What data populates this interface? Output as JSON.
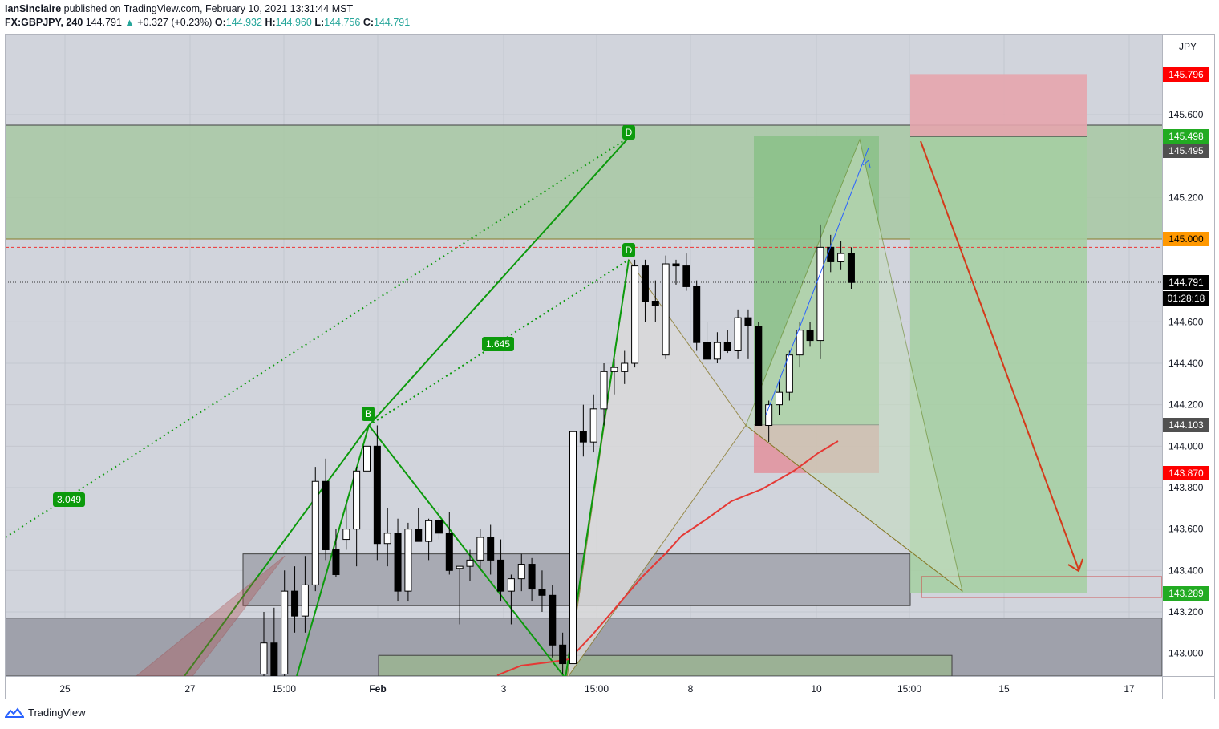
{
  "header": {
    "author": "IanSinclaire",
    "published_text": "published on TradingView.com, February 10, 2021 13:31:44 MST",
    "symbol": "FX:GBPJPY, 240",
    "last": "144.791",
    "change_arrow": "▲",
    "change": "+0.327 (+0.23%)",
    "o_label": "O:",
    "o_value": "144.932",
    "h_label": "H:",
    "h_value": "144.960",
    "l_label": "L:",
    "l_value": "144.756",
    "c_label": "C:",
    "c_value": "144.791"
  },
  "footer": {
    "brand": "TradingView",
    "logo_icon": "tradingview-logo-icon"
  },
  "chart_data": {
    "type": "candlestick",
    "currency_label": "JPY",
    "colors": {
      "background": "#d1d4dc",
      "up_candle": "#ffffff",
      "down_candle": "#000000",
      "pattern_line": "#0c9a0c",
      "target_box": "#8fbd8f",
      "stop_box": "#e08d9b",
      "price_red": "#ff0000",
      "price_orange": "#ff9800",
      "price_green": "#22ab22",
      "price_black": "#000000",
      "price_gray": "#505050"
    },
    "y_axis": {
      "min": 142.88,
      "max": 146.0,
      "ticks": [
        "145.600",
        "145.200",
        "144.600",
        "144.400",
        "144.200",
        "144.000",
        "143.800",
        "143.600",
        "143.400",
        "143.200",
        "143.000"
      ]
    },
    "x_axis": {
      "ticks": [
        "25",
        "27",
        "15:00",
        "Feb",
        "3",
        "15:00",
        "8",
        "10",
        "15:00",
        "15",
        "17"
      ]
    },
    "price_labels": [
      {
        "value": "145.796",
        "color": "red"
      },
      {
        "value": "145.498",
        "color": "green"
      },
      {
        "value": "145.495",
        "color": "gray"
      },
      {
        "value": "145.000",
        "color": "orange"
      },
      {
        "value": "144.791",
        "color": "black"
      },
      {
        "value": "01:28:18",
        "color": "black"
      },
      {
        "value": "144.103",
        "color": "gray"
      },
      {
        "value": "143.870",
        "color": "red"
      },
      {
        "value": "143.289",
        "color": "green"
      }
    ],
    "pattern_labels": [
      {
        "text": "D",
        "price": 145.55
      },
      {
        "text": "D",
        "price": 144.98
      },
      {
        "text": "B",
        "price": 144.15
      },
      {
        "text": "1.645",
        "price": 144.5
      },
      {
        "text": "3.049",
        "price": 143.73
      }
    ],
    "candles": [
      {
        "o": 142.9,
        "h": 143.2,
        "l": 142.85,
        "c": 143.05
      },
      {
        "o": 143.05,
        "h": 143.22,
        "l": 142.85,
        "c": 142.86
      },
      {
        "o": 142.9,
        "h": 143.4,
        "l": 142.85,
        "c": 143.3
      },
      {
        "o": 143.3,
        "h": 143.42,
        "l": 143.1,
        "c": 143.18
      },
      {
        "o": 143.18,
        "h": 143.47,
        "l": 143.1,
        "c": 143.33
      },
      {
        "o": 143.33,
        "h": 143.9,
        "l": 143.3,
        "c": 143.83
      },
      {
        "o": 143.83,
        "h": 143.94,
        "l": 143.45,
        "c": 143.5
      },
      {
        "o": 143.5,
        "h": 143.6,
        "l": 143.37,
        "c": 143.38
      },
      {
        "o": 143.55,
        "h": 143.72,
        "l": 143.5,
        "c": 143.6
      },
      {
        "o": 143.6,
        "h": 143.9,
        "l": 143.42,
        "c": 143.88
      },
      {
        "o": 143.88,
        "h": 144.1,
        "l": 143.84,
        "c": 144.0
      },
      {
        "o": 144.0,
        "h": 144.1,
        "l": 143.45,
        "c": 143.53
      },
      {
        "o": 143.53,
        "h": 143.7,
        "l": 143.42,
        "c": 143.58
      },
      {
        "o": 143.58,
        "h": 143.65,
        "l": 143.25,
        "c": 143.3
      },
      {
        "o": 143.3,
        "h": 143.63,
        "l": 143.25,
        "c": 143.6
      },
      {
        "o": 143.6,
        "h": 143.7,
        "l": 143.55,
        "c": 143.54
      },
      {
        "o": 143.54,
        "h": 143.65,
        "l": 143.45,
        "c": 143.64
      },
      {
        "o": 143.64,
        "h": 143.7,
        "l": 143.55,
        "c": 143.58
      },
      {
        "o": 143.58,
        "h": 143.68,
        "l": 143.38,
        "c": 143.4
      },
      {
        "o": 143.41,
        "h": 143.42,
        "l": 143.14,
        "c": 143.42
      },
      {
        "o": 143.42,
        "h": 143.5,
        "l": 143.35,
        "c": 143.45
      },
      {
        "o": 143.45,
        "h": 143.6,
        "l": 143.4,
        "c": 143.56
      },
      {
        "o": 143.56,
        "h": 143.62,
        "l": 143.38,
        "c": 143.45
      },
      {
        "o": 143.45,
        "h": 143.55,
        "l": 143.25,
        "c": 143.3
      },
      {
        "o": 143.3,
        "h": 143.38,
        "l": 143.14,
        "c": 143.36
      },
      {
        "o": 143.36,
        "h": 143.48,
        "l": 143.3,
        "c": 143.43
      },
      {
        "o": 143.43,
        "h": 143.46,
        "l": 143.25,
        "c": 143.31
      },
      {
        "o": 143.31,
        "h": 143.4,
        "l": 143.2,
        "c": 143.28
      },
      {
        "o": 143.28,
        "h": 143.33,
        "l": 142.98,
        "c": 143.04
      },
      {
        "o": 143.04,
        "h": 143.1,
        "l": 142.9,
        "c": 142.95
      },
      {
        "o": 142.95,
        "h": 144.1,
        "l": 142.88,
        "c": 144.07
      },
      {
        "o": 144.07,
        "h": 144.2,
        "l": 143.95,
        "c": 144.02
      },
      {
        "o": 144.02,
        "h": 144.25,
        "l": 143.97,
        "c": 144.18
      },
      {
        "o": 144.18,
        "h": 144.4,
        "l": 144.1,
        "c": 144.36
      },
      {
        "o": 144.36,
        "h": 144.42,
        "l": 144.25,
        "c": 144.38
      },
      {
        "o": 144.36,
        "h": 144.46,
        "l": 144.3,
        "c": 144.4
      },
      {
        "o": 144.4,
        "h": 144.9,
        "l": 144.38,
        "c": 144.87
      },
      {
        "o": 144.87,
        "h": 144.9,
        "l": 144.6,
        "c": 144.7
      },
      {
        "o": 144.7,
        "h": 144.8,
        "l": 144.6,
        "c": 144.68
      },
      {
        "o": 144.44,
        "h": 144.92,
        "l": 144.42,
        "c": 144.88
      },
      {
        "o": 144.88,
        "h": 144.9,
        "l": 144.78,
        "c": 144.87
      },
      {
        "o": 144.87,
        "h": 144.93,
        "l": 144.75,
        "c": 144.77
      },
      {
        "o": 144.77,
        "h": 144.8,
        "l": 144.46,
        "c": 144.5
      },
      {
        "o": 144.5,
        "h": 144.6,
        "l": 144.43,
        "c": 144.42
      },
      {
        "o": 144.42,
        "h": 144.55,
        "l": 144.4,
        "c": 144.5
      },
      {
        "o": 144.5,
        "h": 144.56,
        "l": 144.45,
        "c": 144.46
      },
      {
        "o": 144.46,
        "h": 144.66,
        "l": 144.42,
        "c": 144.62
      },
      {
        "o": 144.62,
        "h": 144.66,
        "l": 144.42,
        "c": 144.58
      },
      {
        "o": 144.58,
        "h": 144.6,
        "l": 144.1,
        "c": 144.1
      },
      {
        "o": 144.1,
        "h": 144.22,
        "l": 144.02,
        "c": 144.2
      },
      {
        "o": 144.2,
        "h": 144.32,
        "l": 144.15,
        "c": 144.26
      },
      {
        "o": 144.26,
        "h": 144.46,
        "l": 144.22,
        "c": 144.44
      },
      {
        "o": 144.44,
        "h": 144.6,
        "l": 144.38,
        "c": 144.56
      },
      {
        "o": 144.56,
        "h": 144.6,
        "l": 144.48,
        "c": 144.51
      },
      {
        "o": 144.51,
        "h": 145.07,
        "l": 144.42,
        "c": 144.96
      },
      {
        "o": 144.96,
        "h": 145.02,
        "l": 144.84,
        "c": 144.89
      },
      {
        "o": 144.89,
        "h": 144.99,
        "l": 144.85,
        "c": 144.93
      },
      {
        "o": 144.93,
        "h": 144.96,
        "l": 144.76,
        "c": 144.79
      }
    ]
  }
}
